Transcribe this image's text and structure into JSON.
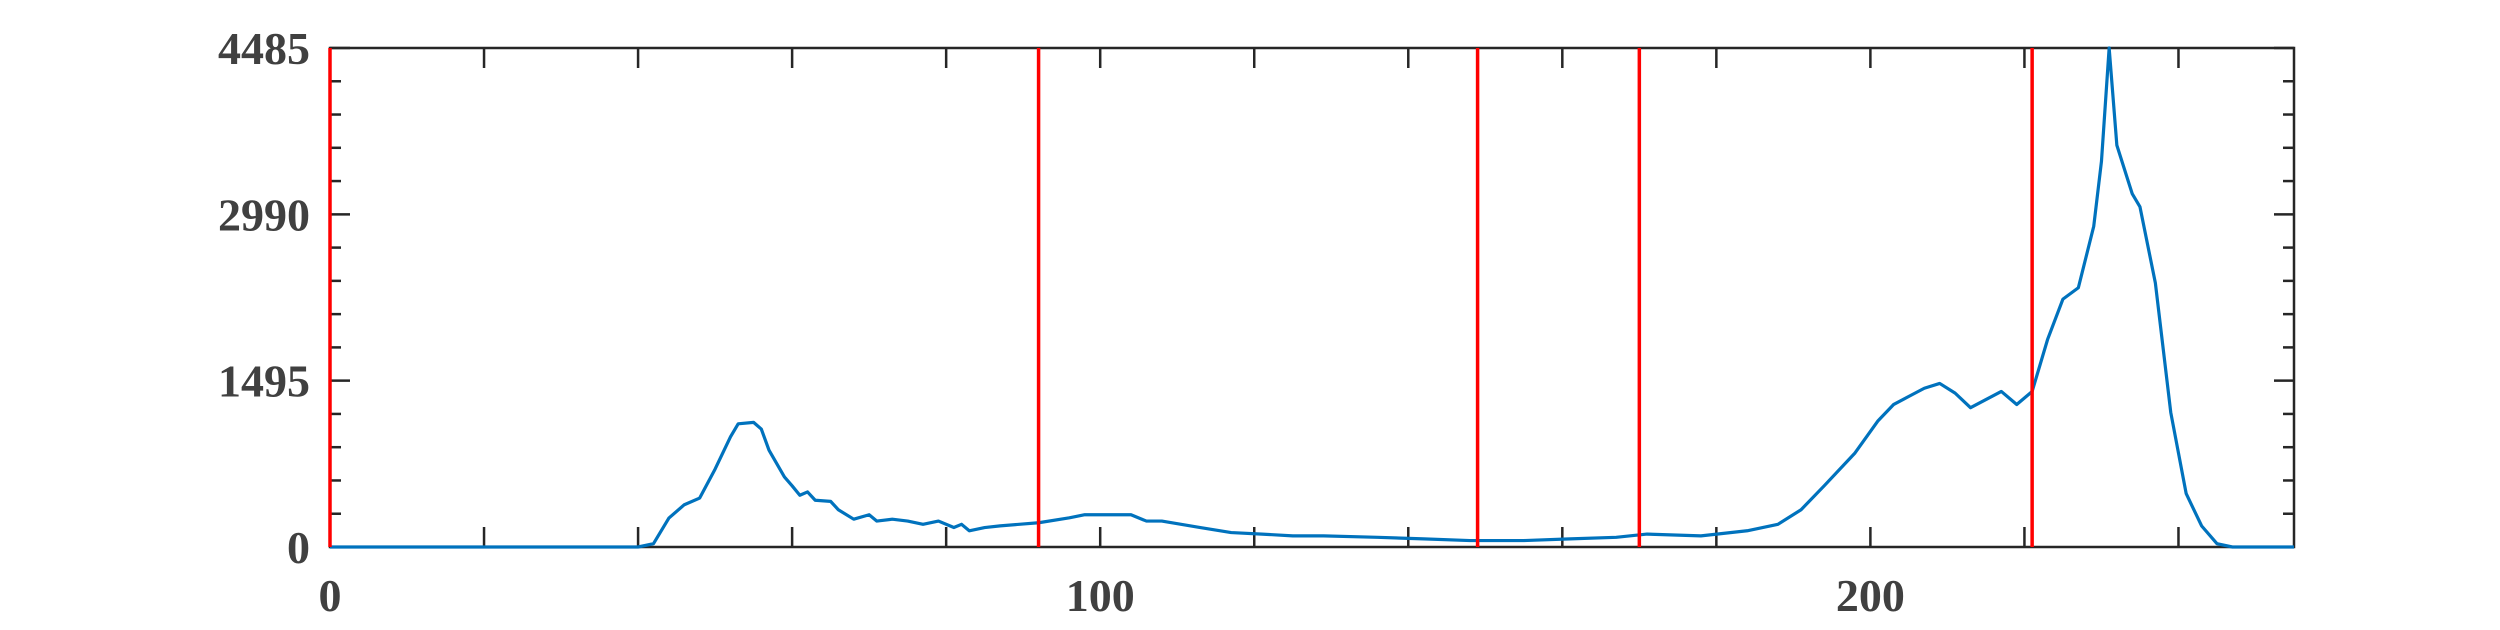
{
  "chart_data": {
    "type": "line",
    "x": [
      0,
      40,
      42,
      44,
      46,
      48,
      50,
      52,
      53,
      55,
      56,
      57,
      59,
      60,
      61,
      62,
      63,
      65,
      66,
      68,
      70,
      71,
      73,
      75,
      77,
      79,
      81,
      82,
      83,
      85,
      87,
      92,
      96,
      98,
      100,
      104,
      106,
      108,
      113,
      117,
      121,
      125,
      129,
      136,
      142,
      148,
      155,
      161,
      167,
      171,
      178,
      184,
      188,
      191,
      194,
      198,
      201,
      203,
      205,
      207,
      209,
      211,
      213,
      217,
      219,
      221,
      223,
      225,
      227,
      229,
      230,
      231,
      232,
      234,
      235,
      237,
      239,
      241,
      243,
      245,
      247,
      255
    ],
    "series": [
      {
        "color": "#0072bd",
        "values": [
          0,
          0,
          30,
          260,
          380,
          440,
          700,
          990,
          1107,
          1120,
          1060,
          870,
          630,
          550,
          465,
          495,
          420,
          410,
          335,
          250,
          290,
          233,
          250,
          233,
          204,
          233,
          175,
          204,
          146,
          175,
          190,
          218,
          262,
          290,
          290,
          290,
          233,
          233,
          175,
          130,
          116,
          100,
          100,
          87,
          73,
          58,
          58,
          73,
          87,
          116,
          100,
          146,
          204,
          335,
          550,
          845,
          1135,
          1280,
          1354,
          1427,
          1470,
          1383,
          1252,
          1398,
          1281,
          1398,
          1864,
          2228,
          2330,
          2883,
          3465,
          4485,
          3611,
          3174,
          3058,
          2373,
          1209,
          480,
          190,
          30,
          0,
          0
        ]
      }
    ],
    "thresholds": [
      0,
      92,
      149,
      170,
      221
    ],
    "threshold_color": "#ff0000",
    "xlim": [
      0,
      255
    ],
    "ylim": [
      0,
      4485
    ],
    "xticks": [
      0,
      100,
      200
    ],
    "yticks": [
      0,
      1495,
      2990,
      4485
    ],
    "xticks_minor": [
      20,
      40,
      60,
      80,
      120,
      140,
      160,
      180,
      220,
      240
    ],
    "yticks_minor": [
      299,
      598,
      897,
      1196,
      1794,
      2093,
      2392,
      2691,
      3289,
      3588,
      3887,
      4186
    ]
  }
}
